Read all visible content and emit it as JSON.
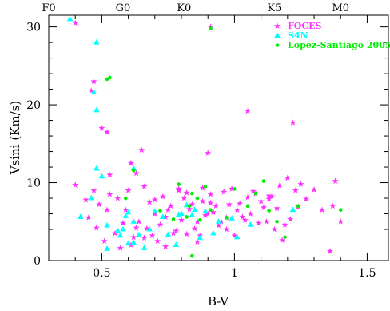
{
  "chart_data": {
    "type": "scatter",
    "xlabel": "B-V",
    "ylabel": "Vsini (Km/s)",
    "xlim": [
      0.3,
      1.58
    ],
    "ylim": [
      0,
      31.5
    ],
    "x_ticks": [
      {
        "value": 0.5,
        "label": "0.5"
      },
      {
        "value": 1.0,
        "label": "1"
      },
      {
        "value": 1.5,
        "label": "1.5"
      }
    ],
    "y_ticks": [
      {
        "value": 0,
        "label": "0"
      },
      {
        "value": 10,
        "label": "10"
      },
      {
        "value": 20,
        "label": "20"
      },
      {
        "value": 30,
        "label": "30"
      }
    ],
    "spectral_types": [
      {
        "label": "F0",
        "value": 0.3
      },
      {
        "label": "G0",
        "value": 0.58
      },
      {
        "label": "K0",
        "value": 0.81
      },
      {
        "label": "K5",
        "value": 1.15
      },
      {
        "label": "M0",
        "value": 1.4
      }
    ],
    "legend_position": "top-right",
    "series": [
      {
        "name": "FOCES",
        "marker": "star",
        "color": "#ff33ff",
        "points": [
          [
            0.4,
            30.5
          ],
          [
            0.47,
            23.0
          ],
          [
            0.46,
            21.8
          ],
          [
            0.5,
            17.0
          ],
          [
            0.52,
            16.5
          ],
          [
            0.65,
            14.2
          ],
          [
            0.61,
            12.5
          ],
          [
            0.53,
            11.0
          ],
          [
            0.9,
            13.8
          ],
          [
            1.05,
            19.2
          ],
          [
            1.22,
            17.7
          ],
          [
            0.91,
            30.0
          ],
          [
            0.4,
            9.7
          ],
          [
            0.44,
            7.8
          ],
          [
            0.47,
            9.0
          ],
          [
            0.49,
            7.2
          ],
          [
            0.52,
            6.5
          ],
          [
            0.56,
            8.0
          ],
          [
            0.6,
            9.0
          ],
          [
            0.63,
            11.2
          ],
          [
            0.66,
            9.5
          ],
          [
            0.68,
            7.5
          ],
          [
            0.7,
            6.0
          ],
          [
            0.73,
            8.2
          ],
          [
            0.76,
            7.0
          ],
          [
            0.79,
            9.2
          ],
          [
            0.81,
            8.0
          ],
          [
            0.84,
            7.2
          ],
          [
            0.86,
            5.0
          ],
          [
            0.88,
            9.3
          ],
          [
            0.91,
            8.5
          ],
          [
            0.93,
            7.0
          ],
          [
            0.96,
            8.8
          ],
          [
            0.99,
            9.2
          ],
          [
            1.02,
            7.3
          ],
          [
            1.05,
            8.1
          ],
          [
            1.08,
            8.6
          ],
          [
            1.11,
            6.8
          ],
          [
            1.14,
            8.2
          ],
          [
            1.17,
            9.6
          ],
          [
            1.2,
            10.6
          ],
          [
            1.23,
            9.0
          ],
          [
            1.25,
            9.8
          ],
          [
            1.3,
            9.1
          ],
          [
            1.33,
            6.5
          ],
          [
            1.38,
            10.2
          ],
          [
            1.36,
            1.2
          ],
          [
            0.45,
            5.5
          ],
          [
            0.48,
            4.2
          ],
          [
            0.51,
            2.5
          ],
          [
            0.55,
            3.5
          ],
          [
            0.58,
            4.8
          ],
          [
            0.62,
            3.0
          ],
          [
            0.64,
            5.0
          ],
          [
            0.67,
            4.1
          ],
          [
            0.69,
            3.2
          ],
          [
            0.72,
            4.6
          ],
          [
            0.75,
            6.5
          ],
          [
            0.77,
            3.5
          ],
          [
            0.8,
            5.2
          ],
          [
            0.83,
            6.6
          ],
          [
            0.85,
            4.1
          ],
          [
            0.87,
            3.2
          ],
          [
            0.89,
            5.8
          ],
          [
            0.92,
            6.2
          ],
          [
            0.94,
            4.5
          ],
          [
            0.97,
            5.5
          ],
          [
            1.0,
            3.2
          ],
          [
            1.03,
            5.6
          ],
          [
            1.06,
            6.0
          ],
          [
            1.09,
            4.8
          ],
          [
            1.12,
            5.0
          ],
          [
            1.15,
            4.0
          ],
          [
            1.18,
            2.6
          ],
          [
            1.21,
            5.3
          ],
          [
            1.4,
            5.0
          ],
          [
            0.57,
            1.6
          ],
          [
            0.61,
            2.0
          ],
          [
            0.66,
            2.9
          ],
          [
            0.71,
            2.5
          ],
          [
            0.74,
            1.8
          ],
          [
            0.78,
            3.8
          ],
          [
            0.82,
            3.4
          ],
          [
            0.86,
            2.4
          ],
          [
            0.9,
            6.0
          ],
          [
            0.95,
            5.0
          ],
          [
            0.98,
            7.2
          ],
          [
            1.01,
            6.5
          ],
          [
            1.04,
            5.2
          ],
          [
            1.07,
            8.9
          ],
          [
            1.1,
            7.6
          ],
          [
            1.13,
            7.9
          ],
          [
            1.16,
            6.7
          ],
          [
            1.19,
            4.6
          ],
          [
            1.24,
            6.9
          ],
          [
            1.27,
            7.9
          ],
          [
            1.37,
            7.0
          ],
          [
            0.53,
            8.5
          ],
          [
            0.59,
            6.5
          ],
          [
            0.63,
            4.2
          ],
          [
            0.79,
            9.0
          ],
          [
            0.88,
            7.6
          ],
          [
            0.7,
            7.8
          ],
          [
            0.82,
            8.7
          ],
          [
            0.97,
            4.0
          ],
          [
            1.13,
            8.3
          ],
          [
            0.74,
            5.6
          ],
          [
            0.91,
            7.4
          ]
        ]
      },
      {
        "name": "S4N",
        "marker": "triangle",
        "color": "#00ffff",
        "points": [
          [
            0.38,
            31.0
          ],
          [
            0.48,
            28.0
          ],
          [
            0.47,
            21.6
          ],
          [
            0.48,
            19.3
          ],
          [
            0.48,
            11.8
          ],
          [
            0.5,
            10.8
          ],
          [
            0.62,
            11.8
          ],
          [
            0.42,
            5.6
          ],
          [
            0.46,
            8.0
          ],
          [
            0.52,
            4.5
          ],
          [
            0.56,
            3.8
          ],
          [
            0.59,
            5.7
          ],
          [
            0.6,
            6.2
          ],
          [
            0.62,
            5.0
          ],
          [
            0.58,
            4.0
          ],
          [
            0.64,
            3.3
          ],
          [
            0.6,
            2.2
          ],
          [
            0.62,
            2.3
          ],
          [
            0.66,
            1.6
          ],
          [
            0.7,
            6.3
          ],
          [
            0.75,
            3.3
          ],
          [
            0.73,
            5.6
          ],
          [
            0.79,
            5.9
          ],
          [
            0.8,
            6.0
          ],
          [
            0.82,
            7.1
          ],
          [
            0.85,
            6.5
          ],
          [
            0.84,
            5.8
          ],
          [
            0.87,
            2.9
          ],
          [
            0.89,
            6.3
          ],
          [
            0.92,
            3.5
          ],
          [
            0.94,
            5.0
          ],
          [
            0.99,
            5.4
          ],
          [
            1.01,
            3.0
          ],
          [
            1.06,
            4.6
          ],
          [
            1.22,
            6.5
          ],
          [
            0.52,
            1.5
          ],
          [
            0.78,
            2.0
          ],
          [
            0.68,
            4.0
          ],
          [
            0.57,
            3.2
          ]
        ]
      },
      {
        "name": "Lopez-Santiago 2005",
        "marker": "dot",
        "color": "#00ee00",
        "points": [
          [
            0.91,
            29.8
          ],
          [
            0.52,
            23.3
          ],
          [
            0.53,
            23.5
          ],
          [
            0.62,
            11.6
          ],
          [
            0.59,
            8.0
          ],
          [
            0.79,
            9.8
          ],
          [
            0.84,
            8.6
          ],
          [
            0.86,
            8.0
          ],
          [
            0.89,
            9.5
          ],
          [
            1.0,
            9.2
          ],
          [
            1.08,
            8.6
          ],
          [
            1.11,
            10.2
          ],
          [
            1.13,
            6.4
          ],
          [
            1.24,
            7.0
          ],
          [
            1.4,
            6.5
          ],
          [
            0.84,
            0.6
          ],
          [
            1.19,
            3.0
          ],
          [
            0.72,
            6.4
          ],
          [
            0.82,
            5.6
          ],
          [
            0.87,
            5.2
          ],
          [
            0.91,
            6.5
          ],
          [
            0.97,
            5.5
          ],
          [
            1.05,
            7.0
          ],
          [
            0.77,
            5.3
          ],
          [
            1.16,
            5.0
          ],
          [
            0.83,
            7.0
          ]
        ]
      }
    ]
  }
}
